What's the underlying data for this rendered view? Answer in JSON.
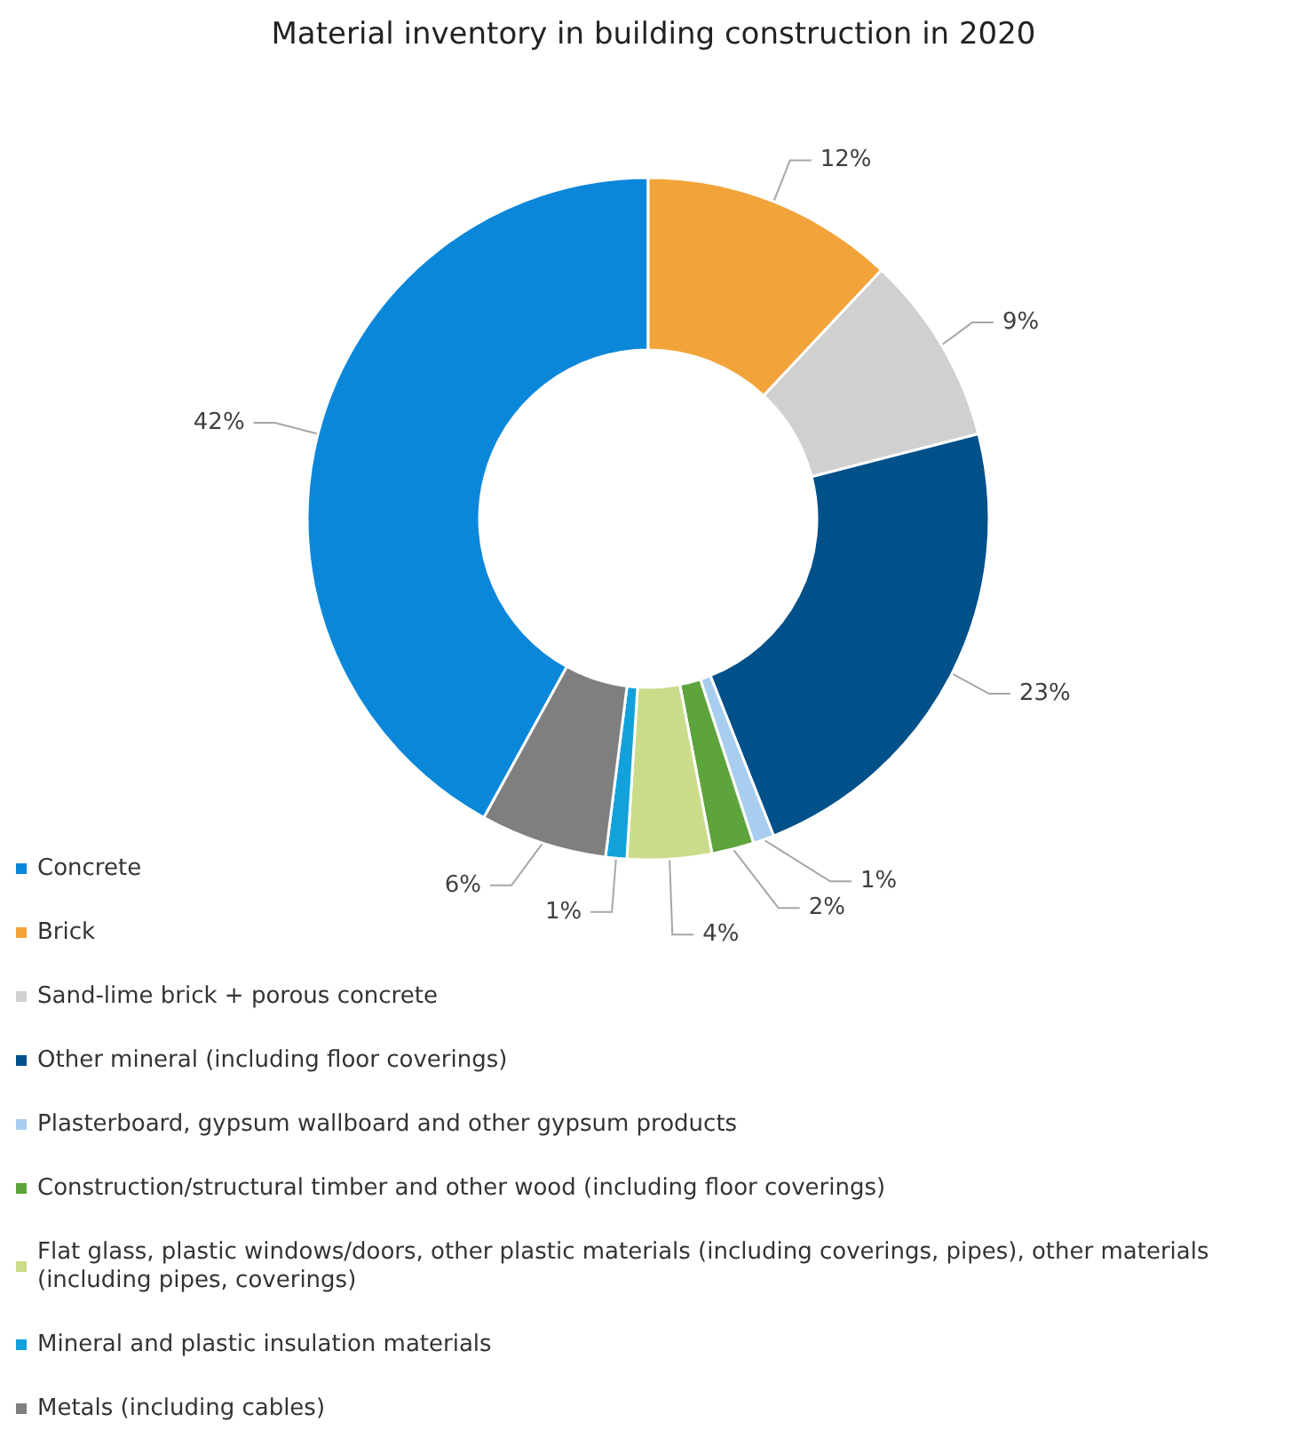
{
  "chart_data": {
    "type": "donut",
    "title": "Material inventory in building construction in 2020",
    "categories": [
      "Concrete",
      "Brick",
      "Sand-lime brick + porous concrete",
      "Other mineral (including floor coverings)",
      "Plasterboard, gypsum wallboard and other gypsum products",
      "Construction/structural timber and other wood (including floor coverings)",
      "Flat glass, plastic windows/doors, other plastic materials (including coverings, pipes), other materials (including pipes, coverings)",
      "Mineral and plastic insulation materials",
      "Metals (including cables)"
    ],
    "values": [
      42,
      12,
      9,
      23,
      1,
      2,
      4,
      1,
      6
    ],
    "colors": [
      "#0b87da",
      "#f2a43a",
      "#d0d0d0",
      "#00508a",
      "#a8cdee",
      "#5ea43c",
      "#cadc8a",
      "#13a1dc",
      "#7f7f7f"
    ],
    "value_labels": [
      "42%",
      "12%",
      "9%",
      "23%",
      "1%",
      "2%",
      "4%",
      "1%",
      "6%"
    ],
    "legend": "bottom"
  }
}
